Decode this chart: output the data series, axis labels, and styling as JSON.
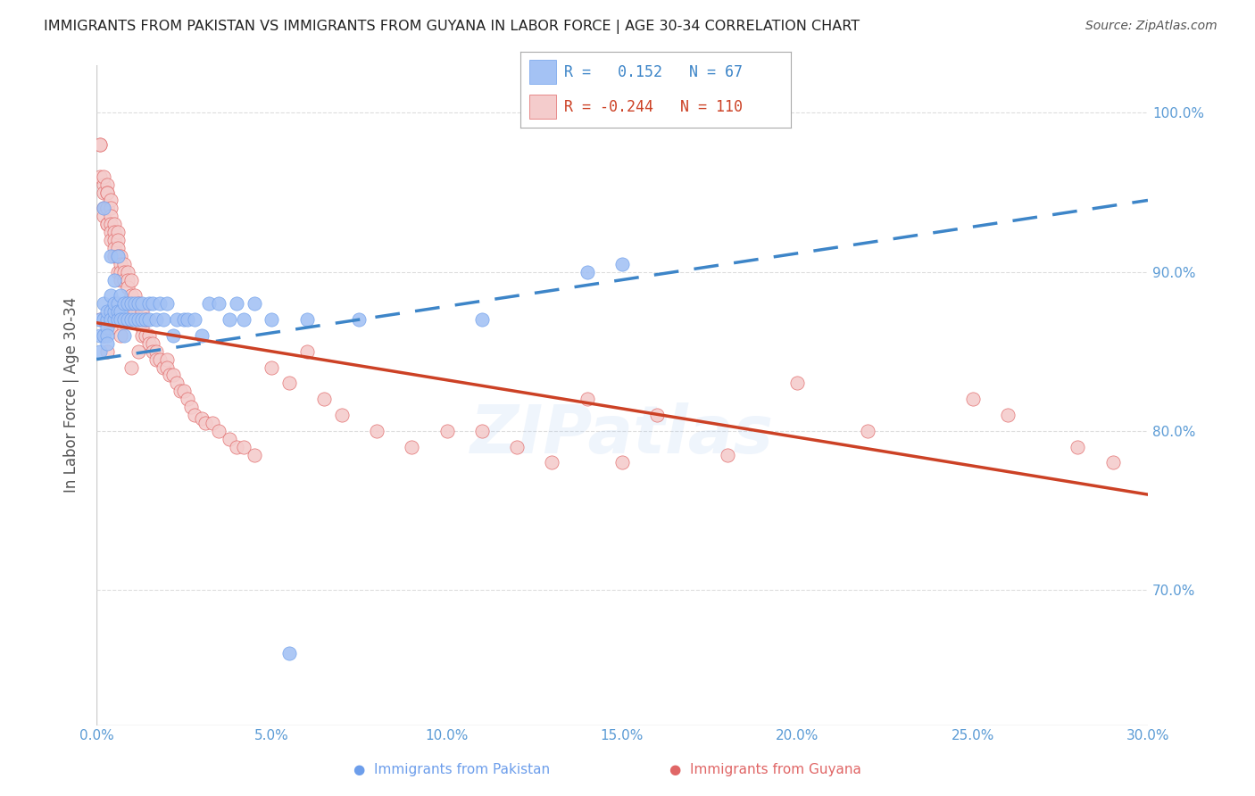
{
  "title": "IMMIGRANTS FROM PAKISTAN VS IMMIGRANTS FROM GUYANA IN LABOR FORCE | AGE 30-34 CORRELATION CHART",
  "source": "Source: ZipAtlas.com",
  "ylabel": "In Labor Force | Age 30-34",
  "xlim": [
    0.0,
    0.3
  ],
  "ylim": [
    0.615,
    1.03
  ],
  "xtick_labels": [
    "0.0%",
    "5.0%",
    "10.0%",
    "15.0%",
    "20.0%",
    "25.0%",
    "30.0%"
  ],
  "xtick_vals": [
    0.0,
    0.05,
    0.1,
    0.15,
    0.2,
    0.25,
    0.3
  ],
  "ytick_labels": [
    "70.0%",
    "80.0%",
    "90.0%",
    "100.0%"
  ],
  "ytick_vals": [
    0.7,
    0.8,
    0.9,
    1.0
  ],
  "pakistan_color": "#a4c2f4",
  "guyana_color": "#f4cccc",
  "pakistan_edge_color": "#6d9eeb",
  "guyana_edge_color": "#e06666",
  "pakistan_R": 0.152,
  "pakistan_N": 67,
  "guyana_R": -0.244,
  "guyana_N": 110,
  "pakistan_line_color": "#3d85c8",
  "guyana_line_color": "#cc4125",
  "watermark": "ZIPatlas",
  "pak_line_x": [
    0.0,
    0.3
  ],
  "pak_line_y": [
    0.845,
    0.945
  ],
  "guy_line_x": [
    0.0,
    0.3
  ],
  "guy_line_y": [
    0.868,
    0.76
  ],
  "pakistan_scatter_x": [
    0.001,
    0.001,
    0.001,
    0.002,
    0.002,
    0.002,
    0.002,
    0.003,
    0.003,
    0.003,
    0.003,
    0.003,
    0.004,
    0.004,
    0.004,
    0.004,
    0.005,
    0.005,
    0.005,
    0.005,
    0.006,
    0.006,
    0.006,
    0.006,
    0.007,
    0.007,
    0.007,
    0.008,
    0.008,
    0.008,
    0.009,
    0.009,
    0.01,
    0.01,
    0.011,
    0.011,
    0.012,
    0.012,
    0.013,
    0.013,
    0.014,
    0.015,
    0.015,
    0.016,
    0.017,
    0.018,
    0.019,
    0.02,
    0.022,
    0.023,
    0.025,
    0.026,
    0.028,
    0.03,
    0.032,
    0.035,
    0.038,
    0.04,
    0.042,
    0.045,
    0.05,
    0.055,
    0.06,
    0.075,
    0.11,
    0.14,
    0.15
  ],
  "pakistan_scatter_y": [
    0.86,
    0.85,
    0.87,
    0.87,
    0.88,
    0.86,
    0.94,
    0.87,
    0.875,
    0.865,
    0.86,
    0.855,
    0.875,
    0.885,
    0.87,
    0.91,
    0.87,
    0.875,
    0.88,
    0.895,
    0.88,
    0.875,
    0.87,
    0.91,
    0.875,
    0.885,
    0.87,
    0.88,
    0.87,
    0.86,
    0.88,
    0.87,
    0.88,
    0.87,
    0.88,
    0.87,
    0.88,
    0.87,
    0.88,
    0.87,
    0.87,
    0.88,
    0.87,
    0.88,
    0.87,
    0.88,
    0.87,
    0.88,
    0.86,
    0.87,
    0.87,
    0.87,
    0.87,
    0.86,
    0.88,
    0.88,
    0.87,
    0.88,
    0.87,
    0.88,
    0.87,
    0.66,
    0.87,
    0.87,
    0.87,
    0.9,
    0.905
  ],
  "guyana_scatter_x": [
    0.001,
    0.001,
    0.001,
    0.002,
    0.002,
    0.002,
    0.002,
    0.002,
    0.003,
    0.003,
    0.003,
    0.003,
    0.003,
    0.003,
    0.003,
    0.004,
    0.004,
    0.004,
    0.004,
    0.004,
    0.004,
    0.005,
    0.005,
    0.005,
    0.005,
    0.005,
    0.006,
    0.006,
    0.006,
    0.006,
    0.006,
    0.007,
    0.007,
    0.007,
    0.007,
    0.008,
    0.008,
    0.008,
    0.009,
    0.009,
    0.009,
    0.01,
    0.01,
    0.01,
    0.011,
    0.011,
    0.012,
    0.012,
    0.013,
    0.013,
    0.013,
    0.014,
    0.014,
    0.015,
    0.015,
    0.016,
    0.016,
    0.017,
    0.017,
    0.018,
    0.019,
    0.02,
    0.02,
    0.021,
    0.022,
    0.023,
    0.024,
    0.025,
    0.026,
    0.027,
    0.028,
    0.03,
    0.031,
    0.033,
    0.035,
    0.038,
    0.04,
    0.042,
    0.045,
    0.05,
    0.055,
    0.06,
    0.065,
    0.07,
    0.08,
    0.09,
    0.1,
    0.11,
    0.12,
    0.13,
    0.14,
    0.15,
    0.16,
    0.18,
    0.2,
    0.22,
    0.25,
    0.26,
    0.28,
    0.29,
    0.001,
    0.002,
    0.003,
    0.004,
    0.005,
    0.006,
    0.007,
    0.008,
    0.01,
    0.012
  ],
  "guyana_scatter_y": [
    0.98,
    0.98,
    0.96,
    0.955,
    0.96,
    0.95,
    0.94,
    0.935,
    0.955,
    0.95,
    0.94,
    0.93,
    0.93,
    0.95,
    0.94,
    0.945,
    0.94,
    0.935,
    0.93,
    0.925,
    0.92,
    0.93,
    0.925,
    0.92,
    0.915,
    0.91,
    0.925,
    0.92,
    0.915,
    0.91,
    0.9,
    0.91,
    0.905,
    0.9,
    0.895,
    0.905,
    0.9,
    0.895,
    0.9,
    0.895,
    0.89,
    0.895,
    0.885,
    0.88,
    0.885,
    0.875,
    0.88,
    0.87,
    0.875,
    0.865,
    0.86,
    0.87,
    0.86,
    0.86,
    0.855,
    0.855,
    0.85,
    0.85,
    0.845,
    0.845,
    0.84,
    0.845,
    0.84,
    0.835,
    0.835,
    0.83,
    0.825,
    0.825,
    0.82,
    0.815,
    0.81,
    0.808,
    0.805,
    0.805,
    0.8,
    0.795,
    0.79,
    0.79,
    0.785,
    0.84,
    0.83,
    0.85,
    0.82,
    0.81,
    0.8,
    0.79,
    0.8,
    0.8,
    0.79,
    0.78,
    0.82,
    0.78,
    0.81,
    0.785,
    0.83,
    0.8,
    0.82,
    0.81,
    0.79,
    0.78,
    0.87,
    0.86,
    0.85,
    0.865,
    0.87,
    0.87,
    0.86,
    0.87,
    0.84,
    0.85
  ]
}
